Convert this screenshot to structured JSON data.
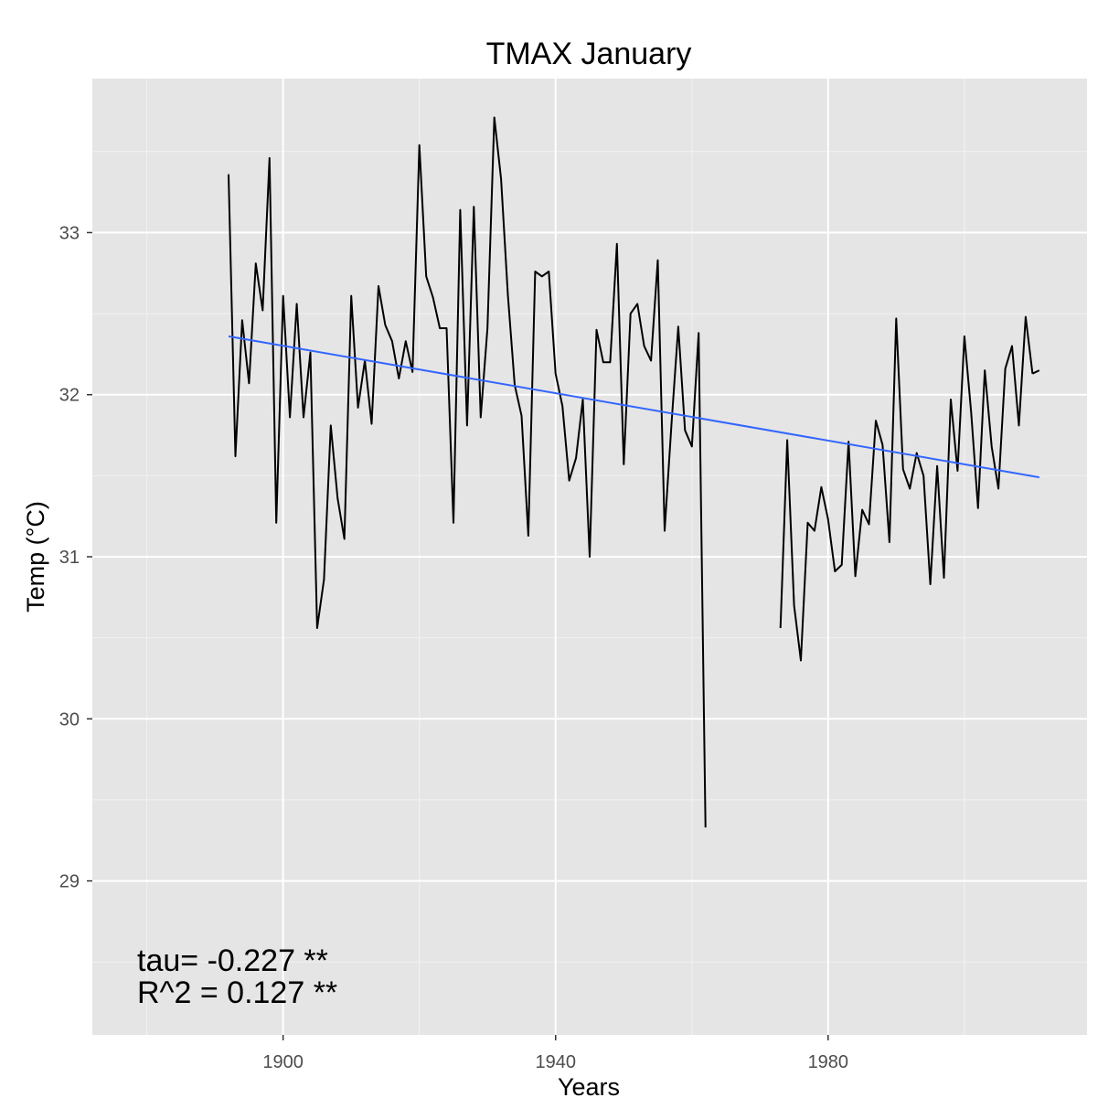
{
  "chart_data": {
    "type": "line",
    "title": "TMAX January",
    "xlabel": "Years",
    "ylabel": "Temp (°C)",
    "xlim": [
      1872,
      2018
    ],
    "ylim": [
      28.05,
      33.95
    ],
    "x_ticks": [
      1900,
      1940,
      1980
    ],
    "x_tick_labels": [
      "1900",
      "1940",
      "1980"
    ],
    "y_ticks": [
      29,
      30,
      31,
      32,
      33
    ],
    "y_tick_labels": [
      "29",
      "30",
      "31",
      "32",
      "33"
    ],
    "grid": true,
    "colors": {
      "panel_background": "#E5E5E5",
      "grid_major": "#FFFFFF",
      "grid_minor": "#F2F2F2",
      "series_line": "#000000",
      "trend_line": "#3366FF",
      "tick_label": "#4D4D4D"
    },
    "series": [
      {
        "x": [
          1892,
          1893,
          1894,
          1895,
          1896,
          1897,
          1898,
          1899,
          1900,
          1901,
          1902,
          1903,
          1904,
          1905,
          1906,
          1907,
          1908,
          1909,
          1910,
          1911,
          1912,
          1913,
          1914,
          1915,
          1916,
          1917,
          1918,
          1919,
          1920,
          1921,
          1922,
          1923,
          1924,
          1925,
          1926,
          1927,
          1928,
          1929,
          1930,
          1931,
          1932,
          1933,
          1934,
          1935,
          1936,
          1937,
          1938,
          1939,
          1940,
          1941,
          1942,
          1943,
          1944,
          1945,
          1946,
          1947,
          1948,
          1949,
          1950,
          1951,
          1952,
          1953,
          1954,
          1955,
          1956,
          1957,
          1958,
          1959,
          1960,
          1961,
          1962
        ],
        "values": [
          33.36,
          31.62,
          32.46,
          32.07,
          32.81,
          32.52,
          33.46,
          31.21,
          32.61,
          31.86,
          32.56,
          31.86,
          32.26,
          30.56,
          30.86,
          31.81,
          31.36,
          31.11,
          32.61,
          31.92,
          32.21,
          31.82,
          32.67,
          32.43,
          32.33,
          32.1,
          32.33,
          32.14,
          33.54,
          32.73,
          32.6,
          32.41,
          32.41,
          31.21,
          33.14,
          31.81,
          33.16,
          31.86,
          32.41,
          33.71,
          33.33,
          32.61,
          32.06,
          31.87,
          31.13,
          32.76,
          32.73,
          32.76,
          32.13,
          31.93,
          31.47,
          31.61,
          31.97,
          31.0,
          32.4,
          32.2,
          32.2,
          32.93,
          31.57,
          32.5,
          32.56,
          32.3,
          32.21,
          32.83,
          31.16,
          31.81,
          32.42,
          31.78,
          31.68,
          32.38,
          29.33
        ]
      },
      {
        "x": [
          1973,
          1974,
          1975,
          1976,
          1977,
          1978,
          1979,
          1980,
          1981,
          1982,
          1983,
          1984,
          1985,
          1986,
          1987,
          1988,
          1989,
          1990,
          1991,
          1992,
          1993,
          1994,
          1995,
          1996,
          1997,
          1998,
          1999,
          2000,
          2001,
          2002,
          2003,
          2004,
          2005,
          2006,
          2007,
          2008,
          2009,
          2010
        ],
        "values": [
          30.56,
          31.72,
          30.7,
          30.36,
          31.21,
          31.16,
          31.43,
          31.23,
          30.91,
          30.95,
          31.71,
          30.88,
          31.29,
          31.2,
          31.84,
          31.69,
          31.09,
          32.47,
          31.54,
          31.42,
          31.64,
          31.5,
          30.83,
          31.56,
          30.87,
          31.97,
          31.53,
          32.36,
          31.89,
          31.3,
          32.15,
          31.68,
          31.42,
          32.16,
          32.3,
          31.81,
          32.48,
          32.13
        ]
      },
      {
        "x": [
          2010,
          2011
        ],
        "values": [
          32.13,
          32.15
        ]
      }
    ],
    "trend": {
      "x": [
        1892,
        2011
      ],
      "values": [
        32.36,
        31.49
      ]
    },
    "annotations": [
      "tau= -0.227 **",
      "R^2 =  0.127 **"
    ]
  }
}
